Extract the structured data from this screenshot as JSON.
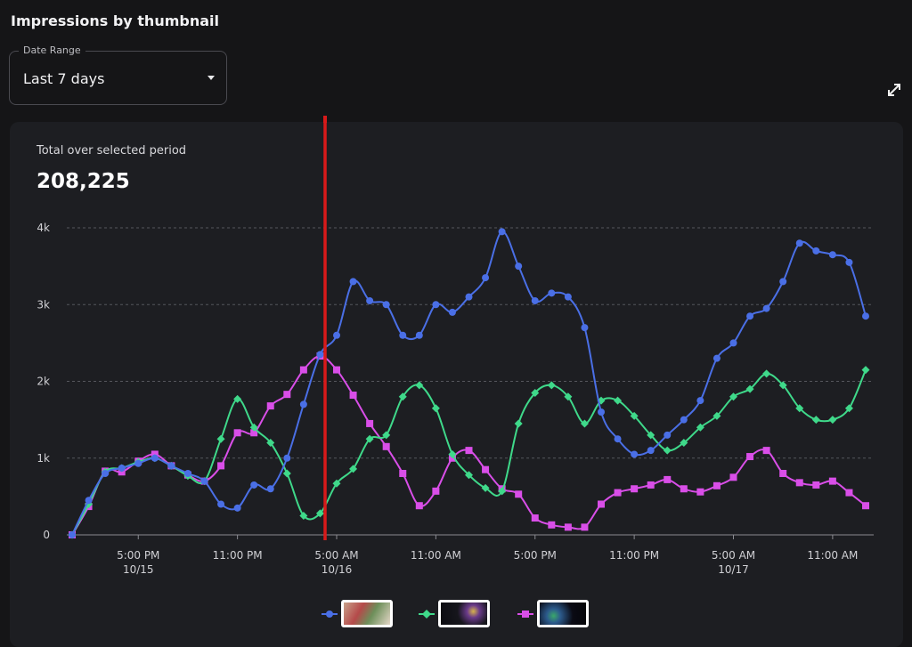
{
  "page": {
    "title": "Impressions by thumbnail"
  },
  "date_range": {
    "label": "Date Range",
    "value": "Last 7 days"
  },
  "icons": {
    "expand": "expand-arrows-icon",
    "dropdown": "caret-down-icon"
  },
  "summary": {
    "label": "Total over selected period",
    "value": "208,225"
  },
  "colors": {
    "background": "#151517",
    "card": "#1d1e22",
    "playhead": "#d81a1a",
    "series_blue": "#4a6fe6",
    "series_green": "#3fd98a",
    "series_purple": "#d94ee8"
  },
  "chart_data": {
    "type": "line",
    "y_tick_labels": [
      "0",
      "1k",
      "2k",
      "3k",
      "4k"
    ],
    "ylim": [
      0,
      4000
    ],
    "grid": true,
    "x_ticks": [
      {
        "index": 4,
        "label": "5:00 PM",
        "sub": "10/15"
      },
      {
        "index": 10,
        "label": "11:00 PM",
        "sub": ""
      },
      {
        "index": 16,
        "label": "5:00 AM",
        "sub": "10/16"
      },
      {
        "index": 22,
        "label": "11:00 AM",
        "sub": ""
      },
      {
        "index": 28,
        "label": "5:00 PM",
        "sub": ""
      },
      {
        "index": 34,
        "label": "11:00 PM",
        "sub": ""
      },
      {
        "index": 40,
        "label": "5:00 AM",
        "sub": "10/17"
      },
      {
        "index": 46,
        "label": "11:00 AM",
        "sub": ""
      }
    ],
    "playhead_index": 15.3,
    "legend_position": "bottom",
    "series": [
      {
        "color": "#4a6fe6",
        "marker": "circle",
        "thumbnail": "thumbnail-1",
        "values": [
          0,
          450,
          800,
          870,
          930,
          1000,
          900,
          800,
          700,
          400,
          350,
          650,
          600,
          1000,
          1700,
          2350,
          2600,
          3300,
          3050,
          3000,
          2600,
          2600,
          3000,
          2900,
          3100,
          3350,
          3950,
          3500,
          3050,
          3150,
          3100,
          2700,
          1600,
          1250,
          1050,
          1100,
          1300,
          1500,
          1750,
          2300,
          2500,
          2850,
          2950,
          3300,
          3800,
          3700,
          3650,
          3550,
          2850
        ]
      },
      {
        "color": "#3fd98a",
        "marker": "diamond",
        "thumbnail": "thumbnail-2",
        "values": [
          0,
          400,
          820,
          870,
          950,
          1000,
          900,
          770,
          700,
          1250,
          1770,
          1400,
          1200,
          800,
          250,
          280,
          670,
          860,
          1250,
          1300,
          1800,
          1950,
          1650,
          1050,
          780,
          610,
          570,
          1450,
          1850,
          1950,
          1800,
          1450,
          1750,
          1750,
          1550,
          1300,
          1100,
          1200,
          1400,
          1550,
          1800,
          1900,
          2100,
          1950,
          1650,
          1500,
          1500,
          1650,
          2150
        ]
      },
      {
        "color": "#d94ee8",
        "marker": "square",
        "thumbnail": "thumbnail-3",
        "values": [
          0,
          370,
          830,
          820,
          960,
          1050,
          900,
          780,
          700,
          900,
          1330,
          1330,
          1680,
          1830,
          2150,
          2330,
          2150,
          1820,
          1450,
          1150,
          800,
          380,
          570,
          1000,
          1100,
          850,
          600,
          530,
          220,
          130,
          100,
          100,
          400,
          550,
          600,
          650,
          720,
          600,
          560,
          640,
          750,
          1020,
          1100,
          800,
          680,
          650,
          700,
          550,
          380
        ]
      }
    ]
  }
}
